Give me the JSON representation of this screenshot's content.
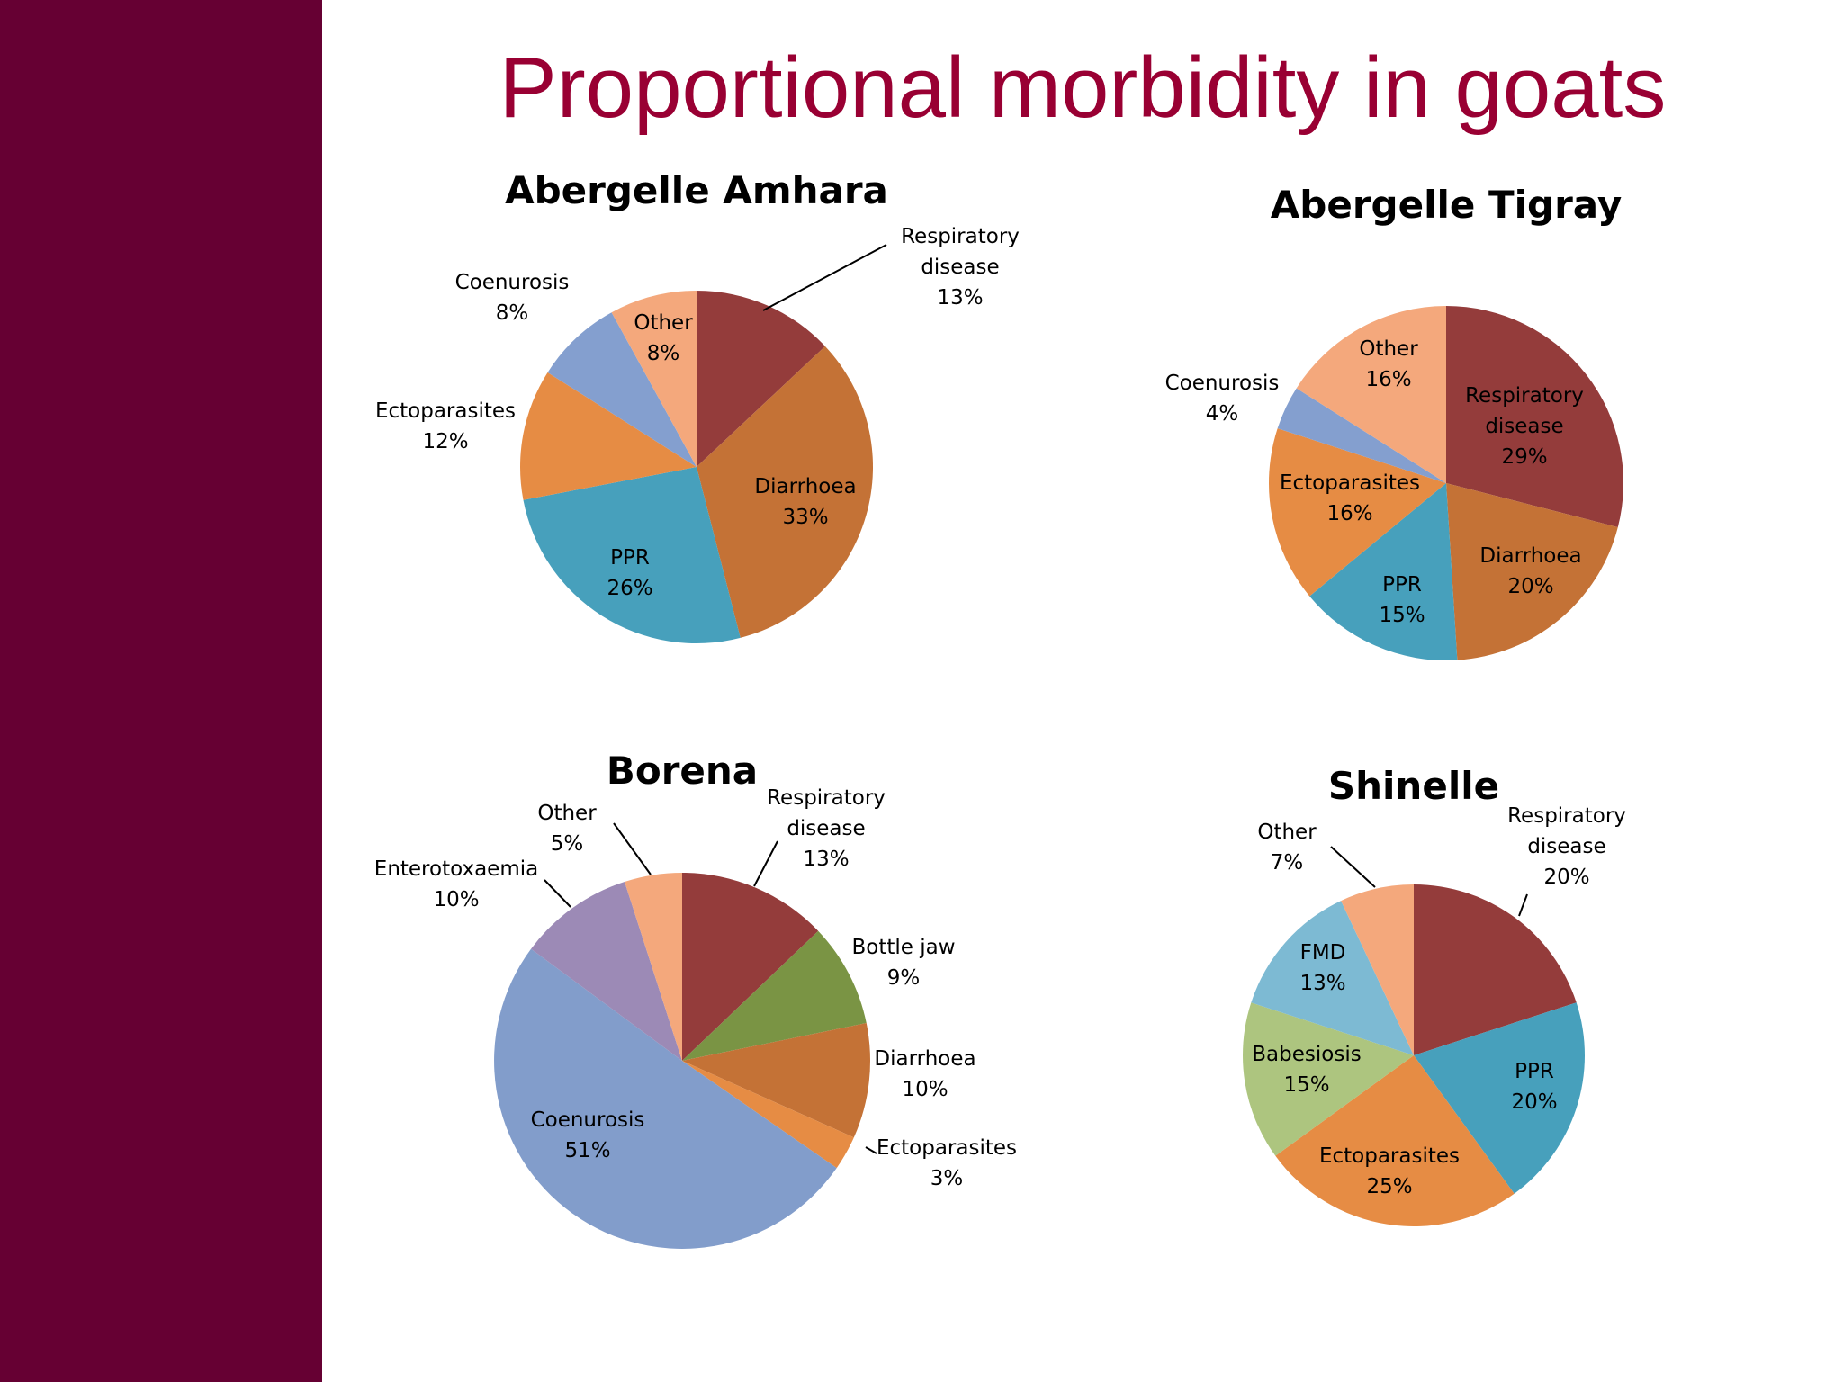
{
  "slide": {
    "title": "Proportional morbidity in goats",
    "sidebar_color": "#660033",
    "title_color": "#990033"
  },
  "chart_data": [
    {
      "type": "pie",
      "title": "Abergelle Amhara",
      "slices": [
        {
          "label": "Respiratory disease",
          "value": 13,
          "color": "#943C3B"
        },
        {
          "label": "Diarrhoea",
          "value": 33,
          "color": "#C47236"
        },
        {
          "label": "PPR",
          "value": 26,
          "color": "#47A0BC"
        },
        {
          "label": "Ectoparasites",
          "value": 12,
          "color": "#E68C44"
        },
        {
          "label": "Coenurosis",
          "value": 8,
          "color": "#849FCF"
        },
        {
          "label": "Other",
          "value": 8,
          "color": "#F4A87C"
        }
      ]
    },
    {
      "type": "pie",
      "title": "Abergelle Tigray",
      "slices": [
        {
          "label": "Respiratory disease",
          "value": 29,
          "color": "#943C3B"
        },
        {
          "label": "Diarrhoea",
          "value": 20,
          "color": "#C47236"
        },
        {
          "label": "PPR",
          "value": 15,
          "color": "#47A0BC"
        },
        {
          "label": "Ectoparasites",
          "value": 16,
          "color": "#E68C44"
        },
        {
          "label": "Coenurosis",
          "value": 4,
          "color": "#849FCF"
        },
        {
          "label": "Other",
          "value": 16,
          "color": "#F4A87C"
        }
      ]
    },
    {
      "type": "pie",
      "title": "Borena",
      "slices": [
        {
          "label": "Respiratory disease",
          "value": 13,
          "color": "#943C3B"
        },
        {
          "label": "Bottle jaw",
          "value": 9,
          "color": "#7A9444"
        },
        {
          "label": "Diarrhoea",
          "value": 10,
          "color": "#C47236"
        },
        {
          "label": "Ectoparasites",
          "value": 3,
          "color": "#E68C44"
        },
        {
          "label": "Coenurosis",
          "value": 51,
          "color": "#829DCB"
        },
        {
          "label": "Enterotoxaemia",
          "value": 10,
          "color": "#9C8AB6"
        },
        {
          "label": "Other",
          "value": 5,
          "color": "#F4A87C"
        }
      ]
    },
    {
      "type": "pie",
      "title": "Shinelle",
      "slices": [
        {
          "label": "Respiratory disease",
          "value": 20,
          "color": "#943C3B"
        },
        {
          "label": "PPR",
          "value": 20,
          "color": "#47A0BC"
        },
        {
          "label": "Ectoparasites",
          "value": 25,
          "color": "#E68C44"
        },
        {
          "label": "Babesiosis",
          "value": 15,
          "color": "#ADC57F"
        },
        {
          "label": "FMD",
          "value": 13,
          "color": "#7DBAD3"
        },
        {
          "label": "Other",
          "value": 7,
          "color": "#F4A87C"
        }
      ]
    }
  ]
}
